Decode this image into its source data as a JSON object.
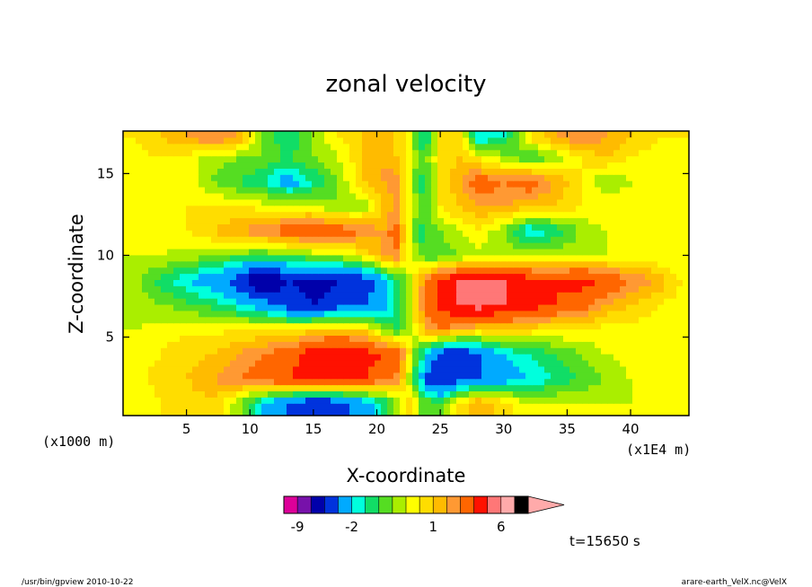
{
  "chart_data": {
    "type": "heatmap",
    "title": "zonal velocity",
    "xlabel": "X-coordinate",
    "ylabel": "Z-coordinate",
    "x_unit_label": "(x1000 m)",
    "y_unit_label": "(x1E4 m)",
    "x_ticks": [
      "5",
      "10",
      "15",
      "20",
      "25",
      "30",
      "35",
      "40"
    ],
    "x_tick_values": [
      5,
      10,
      15,
      20,
      25,
      30,
      35,
      40
    ],
    "y_ticks": [
      "5",
      "10",
      "15"
    ],
    "y_tick_values": [
      5,
      10,
      15
    ],
    "xlim": [
      0,
      44.6
    ],
    "ylim": [
      0.2,
      17.6
    ],
    "colorbar": {
      "labels": [
        "-9",
        "-2",
        "1",
        "6"
      ],
      "label_levels": [
        -9,
        -2,
        1,
        6
      ],
      "levels": [
        -12,
        -9,
        -6,
        -4,
        -3,
        -2,
        -1.5,
        -1,
        -0.5,
        0,
        0.5,
        1,
        1.5,
        2,
        3,
        4,
        6,
        8,
        12
      ],
      "colors": [
        "#dd0099",
        "#7711aa",
        "#0000aa",
        "#0033dd",
        "#00aaff",
        "#00ffdd",
        "#11dd66",
        "#55dd22",
        "#aaee00",
        "#ffff00",
        "#ffdd00",
        "#ffbb00",
        "#ff9933",
        "#ff6600",
        "#ff1100",
        "#ff7777",
        "#ffaaaa"
      ],
      "extend": "max"
    },
    "time_label": "t=15650 s",
    "x": [
      1,
      3,
      5,
      7,
      9,
      11,
      13,
      15,
      17,
      19,
      20.5,
      21.5,
      22.3,
      22.8,
      23.3,
      24,
      25,
      26.5,
      28,
      30,
      32,
      34,
      36,
      38,
      40,
      42,
      44
    ],
    "z": [
      1,
      2.5,
      4,
      5.5,
      7,
      8.5,
      10,
      11.5,
      13,
      14.5,
      16,
      17.2
    ],
    "values": [
      [
        0.3,
        0.5,
        0.6,
        1.0,
        -0.3,
        -2.0,
        -3.0,
        -4.0,
        -3.5,
        -2.5,
        -1.5,
        -0.5,
        0.5,
        1.0,
        -0.5,
        -0.6,
        -1.0,
        0.5,
        1.5,
        0.8,
        0.0,
        0.0,
        0.0,
        0.0,
        0.0,
        0.0,
        0.0
      ],
      [
        0.4,
        0.6,
        1.0,
        1.5,
        2.0,
        2.5,
        3.0,
        3.5,
        3.5,
        3.0,
        2.5,
        2.0,
        0.5,
        -1.0,
        -1.5,
        -3.5,
        -4.0,
        -3.5,
        -3.0,
        -2.5,
        -2.0,
        -1.5,
        -1.0,
        -0.5,
        0.0,
        0.0,
        0.0
      ],
      [
        0.4,
        0.5,
        0.8,
        1.0,
        1.5,
        2.0,
        2.5,
        3.5,
        4.0,
        3.5,
        3.0,
        2.5,
        1.5,
        -0.3,
        -1.0,
        -2.0,
        -3.5,
        -4.0,
        -3.0,
        -2.0,
        -1.5,
        -1.0,
        -0.5,
        0.0,
        0.3,
        0.5,
        0.5
      ],
      [
        0.0,
        0.3,
        0.4,
        0.4,
        0.4,
        0.5,
        0.5,
        0.8,
        1.0,
        0.8,
        -0.5,
        -1.0,
        -0.5,
        0.0,
        0.5,
        1.5,
        2.0,
        1.5,
        1.0,
        1.0,
        0.8,
        0.5,
        0.5,
        0.3,
        0.3,
        0.3,
        0.2
      ],
      [
        -0.3,
        -0.5,
        -0.8,
        -1.2,
        -1.8,
        -2.5,
        -3.5,
        -4.0,
        -3.5,
        -3.0,
        -2.5,
        -1.5,
        -0.5,
        0.5,
        1.5,
        2.5,
        3.5,
        4.0,
        4.5,
        4.0,
        3.5,
        3.0,
        2.5,
        1.5,
        1.0,
        0.5,
        0.3
      ],
      [
        -0.3,
        -1.2,
        -2.0,
        -2.5,
        -3.5,
        -5.5,
        -4.0,
        -4.5,
        -4.0,
        -3.5,
        -2.5,
        -1.5,
        -0.5,
        0.3,
        1.0,
        2.0,
        3.0,
        4.0,
        4.5,
        4.0,
        3.5,
        3.0,
        3.5,
        3.0,
        2.0,
        1.5,
        0.5
      ],
      [
        0.0,
        0.0,
        -0.2,
        -0.5,
        -0.8,
        -1.0,
        -0.8,
        -0.5,
        -0.3,
        0.5,
        1.5,
        2.0,
        0.3,
        0.2,
        -0.5,
        -1.0,
        -0.8,
        -0.5,
        -0.3,
        -0.2,
        -0.2,
        0.0,
        0.0,
        0.0,
        0.0,
        0.0,
        0.0
      ],
      [
        0.0,
        0.3,
        0.5,
        1.0,
        1.5,
        2.0,
        2.5,
        3.0,
        2.5,
        2.0,
        1.5,
        2.5,
        0.5,
        -0.3,
        -1.5,
        -1.0,
        -0.5,
        0.0,
        0.5,
        -0.5,
        -2.0,
        -1.5,
        -0.5,
        0.0,
        0.3,
        0.5,
        0.0
      ],
      [
        0.2,
        0.3,
        0.5,
        0.5,
        0.5,
        0.3,
        0.2,
        0.0,
        -0.5,
        -0.3,
        1.0,
        1.5,
        0.5,
        0.2,
        -0.5,
        -0.5,
        0.5,
        1.0,
        1.5,
        1.5,
        1.0,
        1.0,
        0.5,
        0.5,
        0.3,
        0.2,
        0.2
      ],
      [
        0.3,
        0.3,
        0.5,
        -0.5,
        -1.0,
        -1.5,
        -2.5,
        -1.5,
        -0.5,
        1.0,
        1.5,
        2.0,
        0.5,
        0.0,
        -1.5,
        -1.0,
        0.5,
        1.5,
        2.5,
        2.0,
        2.5,
        1.5,
        0.5,
        -0.5,
        0.0,
        0.3,
        0.3
      ],
      [
        0.3,
        0.5,
        0.3,
        -0.3,
        -0.5,
        -0.5,
        -1.0,
        -0.5,
        0.0,
        1.0,
        1.5,
        1.0,
        0.5,
        0.0,
        -0.5,
        -0.5,
        0.5,
        1.0,
        0.5,
        -0.3,
        -1.0,
        -0.5,
        0.5,
        1.0,
        0.5,
        0.3,
        0.3
      ],
      [
        0.5,
        1.0,
        1.5,
        2.0,
        1.5,
        -0.5,
        -1.5,
        -0.5,
        0.5,
        1.0,
        1.5,
        1.0,
        0.5,
        0.0,
        -1.5,
        -1.5,
        0.5,
        1.0,
        -2.0,
        -1.5,
        0.5,
        1.5,
        2.0,
        1.5,
        1.0,
        0.5,
        0.5
      ]
    ]
  },
  "footer": {
    "left": "/usr/bin/gpview   2010-10-22",
    "right": "arare-earth_VelX.nc@VelX"
  }
}
